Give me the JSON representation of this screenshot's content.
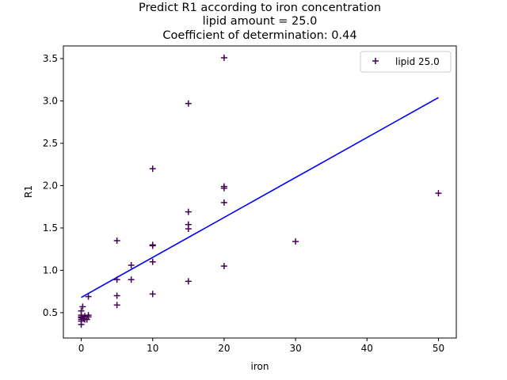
{
  "chart_data": {
    "type": "scatter",
    "title": [
      "Predict R1 according to iron concentration",
      "lipid amount = 25.0",
      "Coefficient of determination: 0.44"
    ],
    "xlabel": "iron",
    "ylabel": "R1",
    "xlim": [
      -2.5,
      52.5
    ],
    "ylim": [
      0.2,
      3.65
    ],
    "xticks": [
      0,
      10,
      20,
      30,
      40,
      50
    ],
    "yticks": [
      0.5,
      1.0,
      1.5,
      2.0,
      2.5,
      3.0,
      3.5
    ],
    "xtick_labels": [
      "0",
      "10",
      "20",
      "30",
      "40",
      "50"
    ],
    "ytick_labels": [
      "0.5",
      "1.0",
      "1.5",
      "2.0",
      "2.5",
      "3.0",
      "3.5"
    ],
    "grid": false,
    "legend": {
      "position": "top-right",
      "entries": [
        "lipid 25.0"
      ]
    },
    "series": [
      {
        "name": "lipid 25.0",
        "marker": "plus",
        "color": "#440154",
        "points": [
          [
            0,
            0.36
          ],
          [
            0,
            0.4
          ],
          [
            0,
            0.42
          ],
          [
            0,
            0.44
          ],
          [
            0,
            0.45
          ],
          [
            0,
            0.47
          ],
          [
            0,
            0.52
          ],
          [
            0.2,
            0.57
          ],
          [
            0.3,
            0.43
          ],
          [
            0.5,
            0.42
          ],
          [
            0.5,
            0.46
          ],
          [
            0.8,
            0.42
          ],
          [
            1,
            0.45
          ],
          [
            1,
            0.47
          ],
          [
            1,
            0.69
          ],
          [
            5,
            0.59
          ],
          [
            5,
            0.7
          ],
          [
            5,
            0.89
          ],
          [
            5,
            1.35
          ],
          [
            7,
            0.89
          ],
          [
            7,
            1.06
          ],
          [
            10,
            0.72
          ],
          [
            10,
            1.1
          ],
          [
            10,
            1.29
          ],
          [
            10,
            1.3
          ],
          [
            10,
            2.2
          ],
          [
            15,
            0.87
          ],
          [
            15,
            1.49
          ],
          [
            15,
            1.54
          ],
          [
            15,
            1.69
          ],
          [
            15,
            2.97
          ],
          [
            20,
            1.05
          ],
          [
            20,
            1.8
          ],
          [
            20,
            1.97
          ],
          [
            20,
            1.99
          ],
          [
            20,
            3.51
          ],
          [
            30,
            1.34
          ],
          [
            50,
            1.91
          ]
        ]
      }
    ],
    "fit_line": {
      "color": "#0000ff",
      "points": [
        [
          0,
          0.68
        ],
        [
          50,
          3.04
        ]
      ]
    }
  }
}
